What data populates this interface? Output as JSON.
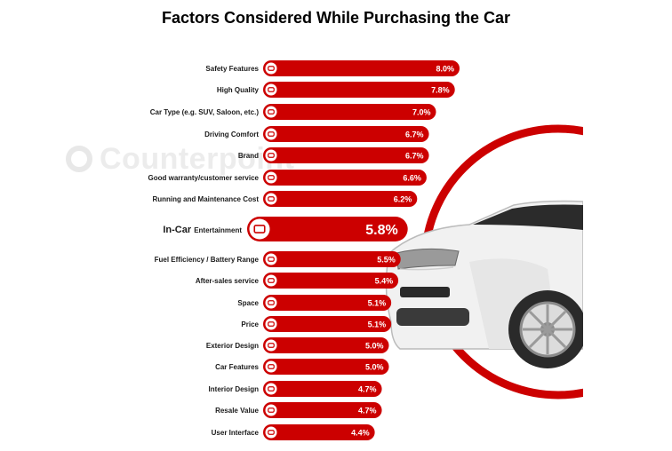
{
  "title": "Factors Considered While Purchasing the Car",
  "watermark": "Counterpoint",
  "colors": {
    "bar": "#cc0000",
    "icon_bg": "#ffffff",
    "text": "#1a1a1a"
  },
  "chart_data": {
    "type": "bar",
    "orientation": "horizontal",
    "title": "Factors Considered While Purchasing the Car",
    "unit": "%",
    "categories": [
      "Safety Features",
      "High Quality",
      "Car Type (e.g. SUV, Saloon, etc.)",
      "Driving Comfort",
      "Brand",
      "Good warranty/customer service",
      "Running and Maintenance Cost",
      "In-Car Entertainment",
      "Fuel Efficiency / Battery Range",
      "After-sales service",
      "Space",
      "Price",
      "Exterior Design",
      "Car Features",
      "Interior Design",
      "Resale Value",
      "User Interface"
    ],
    "values": [
      8.0,
      7.8,
      7.0,
      6.7,
      6.7,
      6.6,
      6.2,
      5.8,
      5.5,
      5.4,
      5.1,
      5.1,
      5.0,
      5.0,
      4.7,
      4.7,
      4.4
    ],
    "value_labels": [
      "8.0%",
      "7.8%",
      "7.0%",
      "6.7%",
      "6.7%",
      "6.6%",
      "6.2%",
      "5.8%",
      "5.5%",
      "5.4%",
      "5.1%",
      "5.1%",
      "5.0%",
      "5.0%",
      "4.7%",
      "4.7%",
      "4.4%"
    ],
    "highlighted": "In-Car Entertainment",
    "highlight_label_parts": [
      "In-Car",
      "Entertainment"
    ],
    "icons": [
      "shield-icon",
      "quality-badge-icon",
      "car-type-icon",
      "seat-icon",
      "brand-icon",
      "warranty-icon",
      "maintenance-icon",
      "entertainment-icon",
      "fuel-icon",
      "service-icon",
      "space-icon",
      "price-icon",
      "exterior-icon",
      "features-icon",
      "interior-icon",
      "resale-icon",
      "user-interface-icon"
    ],
    "legend": "none",
    "grid": false
  }
}
